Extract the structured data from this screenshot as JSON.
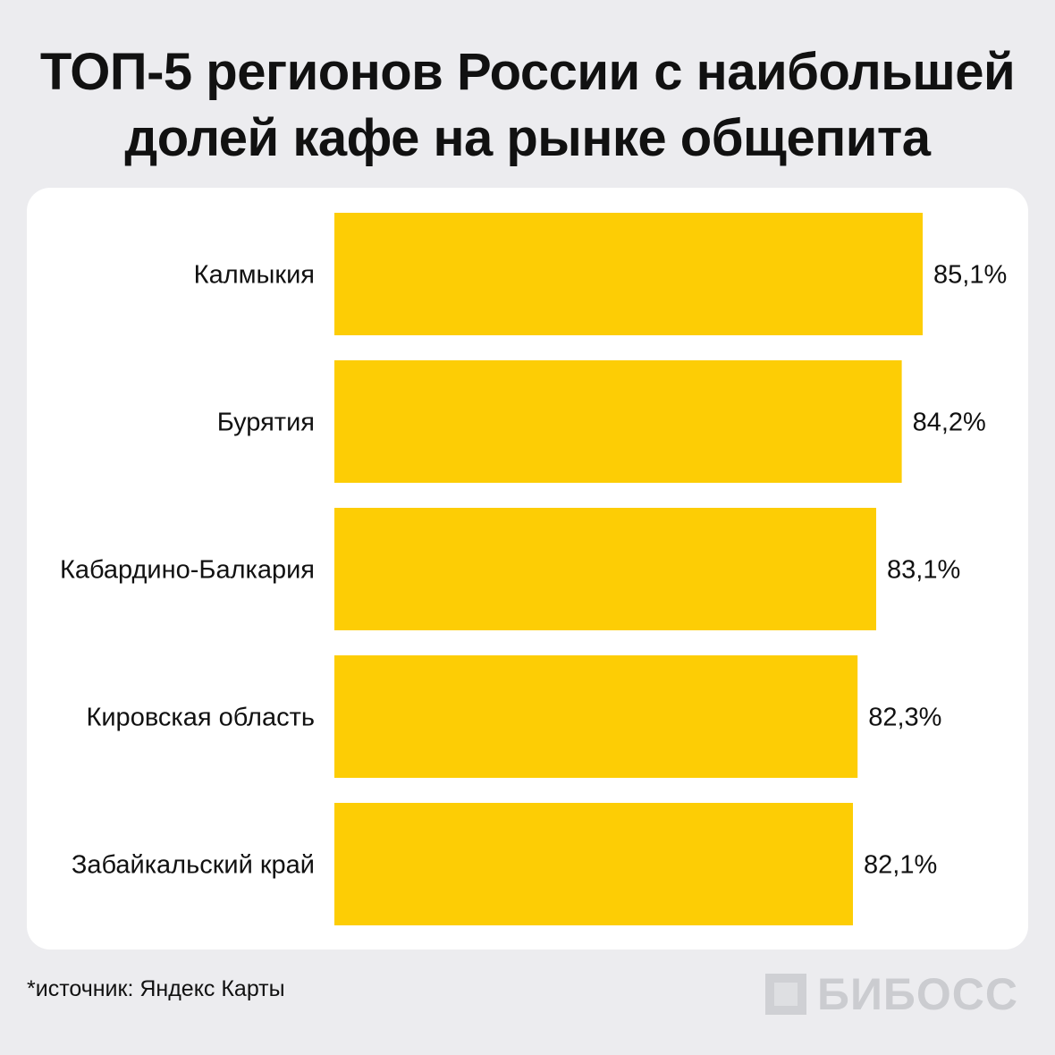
{
  "title_line1": "ТОП-5 регионов России с наибольшей",
  "title_line2": "долей кафе на рынке общепита",
  "source": "*источник: Яндекс Карты",
  "logo_text": "БИБОСС",
  "colors": {
    "bar": "#fdcd05",
    "background": "#ececef",
    "card": "#ffffff"
  },
  "chart_data": {
    "type": "bar",
    "orientation": "horizontal",
    "categories": [
      "Калмыкия",
      "Бурятия",
      "Кабардино-Балкария",
      "Кировская область",
      "Забайкальский край"
    ],
    "values": [
      85.1,
      84.2,
      83.1,
      82.3,
      82.1
    ],
    "value_labels": [
      "85,1%",
      "84,2%",
      "83,1%",
      "82,3%",
      "82,1%"
    ],
    "unit": "%",
    "legend": "none",
    "grid": false
  }
}
